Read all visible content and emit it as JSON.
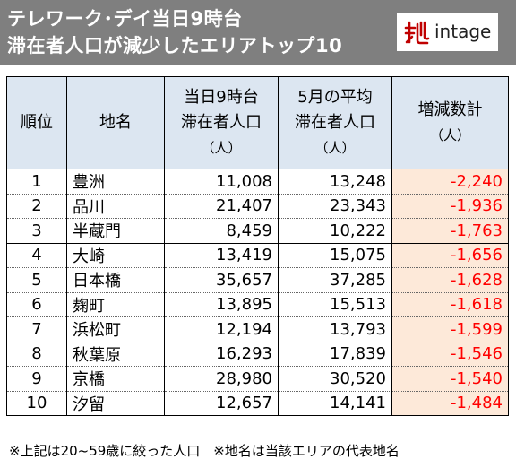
{
  "header": {
    "title_line1": "テレワーク･デイ当日9時台",
    "title_line2": "滞在者人口が減少したエリアトップ10",
    "logo_text": "intage",
    "logo_color": "#c00000"
  },
  "table": {
    "columns": {
      "rank": "順位",
      "area": "地名",
      "today_l1": "当日9時台",
      "today_l2": "滞在者人口",
      "today_unit": "（人）",
      "may_l1": "5月の平均",
      "may_l2": "滞在者人口",
      "may_unit": "（人）",
      "diff_l1": "増減数計",
      "diff_unit": "（人）"
    },
    "rows": [
      {
        "rank": "1",
        "area": "豊洲",
        "today": "11,008",
        "may": "13,248",
        "diff": "-2,240"
      },
      {
        "rank": "2",
        "area": "品川",
        "today": "21,407",
        "may": "23,343",
        "diff": "-1,936"
      },
      {
        "rank": "3",
        "area": "半蔵門",
        "today": "8,459",
        "may": "10,222",
        "diff": "-1,763"
      },
      {
        "rank": "4",
        "area": "大崎",
        "today": "13,419",
        "may": "15,075",
        "diff": "-1,656"
      },
      {
        "rank": "5",
        "area": "日本橋",
        "today": "35,657",
        "may": "37,285",
        "diff": "-1,628"
      },
      {
        "rank": "6",
        "area": "麹町",
        "today": "13,895",
        "may": "15,513",
        "diff": "-1,618"
      },
      {
        "rank": "7",
        "area": "浜松町",
        "today": "12,194",
        "may": "13,793",
        "diff": "-1,599"
      },
      {
        "rank": "8",
        "area": "秋葉原",
        "today": "16,293",
        "may": "17,839",
        "diff": "-1,546"
      },
      {
        "rank": "9",
        "area": "京橋",
        "today": "28,980",
        "may": "30,520",
        "diff": "-1,540"
      },
      {
        "rank": "10",
        "area": "汐留",
        "today": "12,657",
        "may": "14,141",
        "diff": "-1,484"
      }
    ]
  },
  "footnote": "※上記は20~59歳に絞った人口　※地名は当該エリアの代表地名",
  "colors": {
    "header_bg": "#7f7f7f",
    "header_cell_bg": "#dce6f1",
    "diff_bg": "#fde9d9",
    "diff_text": "#ff0000"
  }
}
